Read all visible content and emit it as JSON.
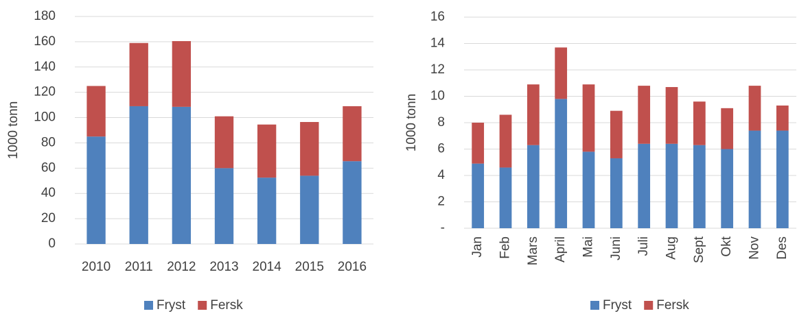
{
  "chart_data": [
    {
      "type": "bar",
      "stacked": true,
      "y_label": "1000 tonn",
      "categories": [
        "2010",
        "2011",
        "2012",
        "2013",
        "2014",
        "2015",
        "2016"
      ],
      "series": [
        {
          "name": "Fryst",
          "color": "#4f81bd",
          "values": [
            85,
            109,
            108.5,
            60,
            52.5,
            54,
            65.5
          ]
        },
        {
          "name": "Fersk",
          "color": "#c0504d",
          "values": [
            40,
            50,
            52,
            41,
            42,
            42.5,
            43.5
          ]
        }
      ],
      "ylim": [
        0,
        180
      ],
      "yticks": [
        0,
        20,
        40,
        60,
        80,
        100,
        120,
        140,
        160,
        180
      ],
      "grid": true,
      "legend": "bottom"
    },
    {
      "type": "bar",
      "stacked": true,
      "y_label": "1000 tonn",
      "categories": [
        "Jan",
        "Feb",
        "Mars",
        "April",
        "Mai",
        "Juni",
        "Juli",
        "Aug",
        "Sept",
        "Okt",
        "Nov",
        "Des"
      ],
      "series": [
        {
          "name": "Fryst",
          "color": "#4f81bd",
          "values": [
            4.9,
            4.6,
            6.3,
            9.8,
            5.8,
            5.3,
            6.4,
            6.4,
            6.3,
            6.0,
            7.4,
            7.4
          ]
        },
        {
          "name": "Fersk",
          "color": "#c0504d",
          "values": [
            3.1,
            4.0,
            4.6,
            3.9,
            5.1,
            3.6,
            4.4,
            4.3,
            3.3,
            3.1,
            3.4,
            1.9
          ]
        }
      ],
      "ylim": [
        0,
        16
      ],
      "yticks": [
        {
          "value": 0,
          "label": "-"
        },
        2,
        4,
        6,
        8,
        10,
        12,
        14,
        16
      ],
      "grid": true,
      "legend": "bottom"
    }
  ]
}
